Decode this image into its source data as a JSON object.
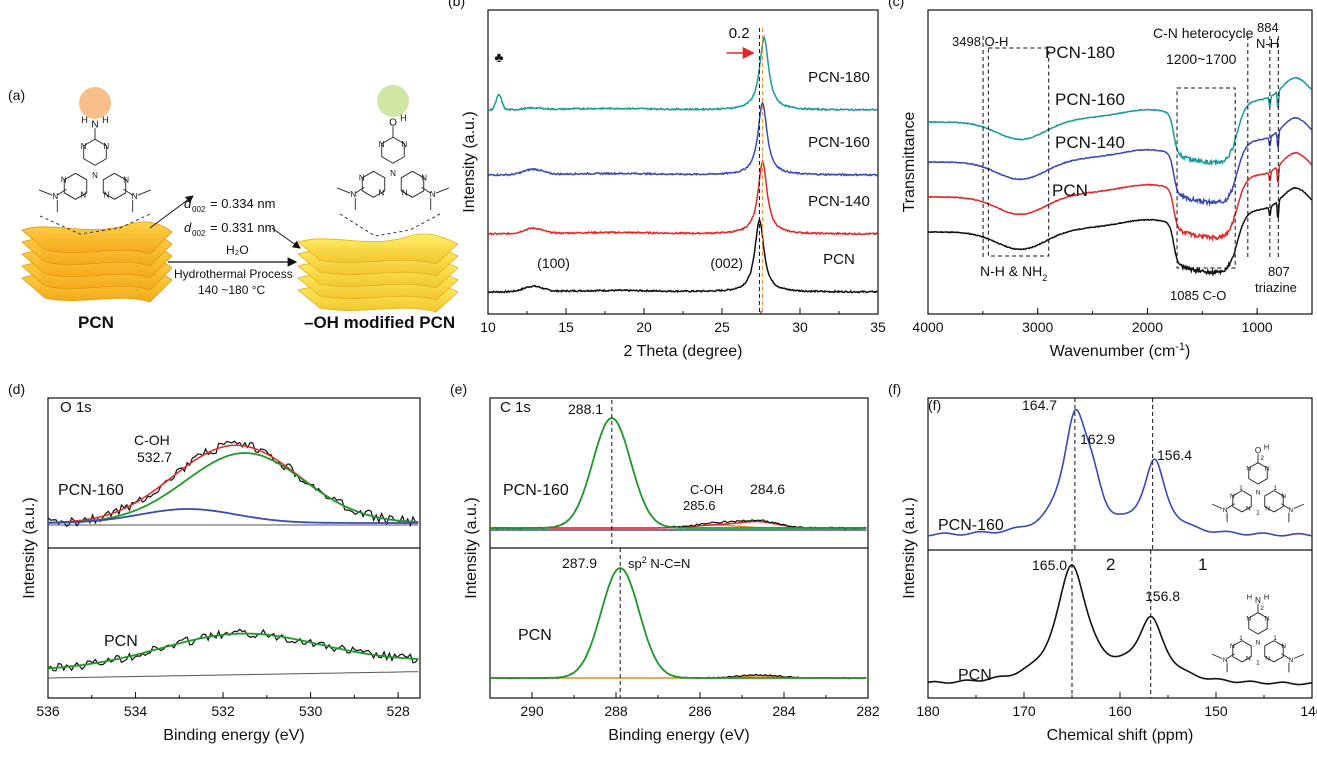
{
  "panel_a": {
    "label": "(a)",
    "left_caption": "PCN",
    "right_caption": "–OH modified PCN",
    "d1": "= 0.334 nm",
    "d2": "= 0.331 nm",
    "d_symbol": "d",
    "d_sub": "002",
    "h2o": "H₂O",
    "process": "Hydrothermal Process",
    "temp": "140 ~180 °C",
    "atoms": {
      "N": "N",
      "H": "H",
      "O": "O"
    }
  },
  "chart_data": [
    {
      "id": "b",
      "panel_label": "(b)",
      "type": "line",
      "xlabel": "2 Theta (degree)",
      "ylabel": "Intensity (a.u.)",
      "xlim": [
        10,
        35
      ],
      "xticks": [
        10,
        15,
        20,
        25,
        30,
        35
      ],
      "series": [
        {
          "name": "PCN-180",
          "color": "#1a9a9a",
          "peak": 27.7,
          "offset": 3
        },
        {
          "name": "PCN-160",
          "color": "#3a48b8",
          "peak": 27.6,
          "offset": 2
        },
        {
          "name": "PCN-140",
          "color": "#e02828",
          "peak": 27.6,
          "offset": 1
        },
        {
          "name": "PCN",
          "color": "#111111",
          "peak": 27.4,
          "offset": 0
        }
      ],
      "annotations": [
        "0.2",
        "(100)",
        "(002)",
        "♣"
      ],
      "vlines": [
        27.4,
        27.6
      ]
    },
    {
      "id": "c",
      "panel_label": "(c)",
      "type": "line",
      "xlabel": "Wavenumber (cm",
      "xlabel_sup": "-1",
      "xlabel_end": ")",
      "ylabel": "Transmittance",
      "xlim": [
        4000,
        500
      ],
      "xticks": [
        4000,
        3000,
        2000,
        1000
      ],
      "series": [
        {
          "name": "PCN-180",
          "color": "#1a9a9a",
          "offset": 3
        },
        {
          "name": "PCN-160",
          "color": "#3a48b8",
          "offset": 2
        },
        {
          "name": "PCN-140",
          "color": "#e02828",
          "offset": 1
        },
        {
          "name": "PCN",
          "color": "#111111",
          "offset": 0
        }
      ],
      "annotations": [
        "3498 O-H",
        "C-N heterocycle",
        "1200~1700",
        "884",
        "N-H",
        "N-H & NH",
        "2",
        "1085 C-O",
        "807",
        "triazine"
      ],
      "vlines": [
        3498,
        3450,
        1085,
        884,
        807
      ]
    },
    {
      "id": "d",
      "panel_label": "(d)",
      "type": "line",
      "title": "O 1s",
      "xlabel": "Binding energy (eV)",
      "ylabel": "Intensity (a.u.)",
      "xlim": [
        536,
        527.5
      ],
      "xticks": [
        536,
        534,
        532,
        530,
        528
      ],
      "subplots": [
        {
          "name": "PCN-160",
          "peaks": [
            {
              "center": 532.7,
              "label": "C-OH"
            },
            {
              "center": 531.5
            }
          ]
        },
        {
          "name": "PCN",
          "peaks": [
            {
              "center": 531.6
            }
          ]
        }
      ],
      "annotations": [
        "C-OH",
        "532.7"
      ]
    },
    {
      "id": "e",
      "panel_label": "(e)",
      "type": "line",
      "title": "C 1s",
      "xlabel": "Binding energy (eV)",
      "ylabel": "Intensity (a.u.)",
      "xlim": [
        291,
        282
      ],
      "xticks": [
        290,
        288,
        286,
        284,
        282
      ],
      "subplots": [
        {
          "name": "PCN-160",
          "peaks": [
            {
              "center": 288.1,
              "label": "288.1"
            },
            {
              "center": 285.6,
              "label": "285.6"
            },
            {
              "center": 284.6,
              "label": "284.6"
            }
          ]
        },
        {
          "name": "PCN",
          "peaks": [
            {
              "center": 287.9,
              "label": "287.9"
            },
            {
              "center": 284.6
            }
          ]
        }
      ],
      "annotations": [
        "288.1",
        "C-OH",
        "285.6",
        "284.6",
        "287.9",
        "sp",
        "2",
        " N-C=N"
      ]
    },
    {
      "id": "f",
      "panel_label": "(f)",
      "type": "line",
      "xlabel": "Chemical shift (ppm)",
      "ylabel": "Intensity (a.u.)",
      "xlim": [
        180,
        140
      ],
      "xticks": [
        180,
        170,
        160,
        150,
        140
      ],
      "subplots": [
        {
          "name": "PCN-160",
          "color": "#3a48b8",
          "peaks": [
            164.7,
            162.9,
            156.4
          ]
        },
        {
          "name": "PCN",
          "color": "#111111",
          "peaks": [
            165.0,
            156.8
          ]
        }
      ],
      "annotations": [
        "164.7",
        "162.9",
        "156.4",
        "165.0",
        "156.8",
        "2",
        "1"
      ]
    }
  ],
  "colors": {
    "teal": "#1a9a9a",
    "blue": "#3a48b8",
    "red": "#e02828",
    "green": "#1f9a2a",
    "orange": "#f08a1a",
    "cyan": "#1aa0d8"
  }
}
